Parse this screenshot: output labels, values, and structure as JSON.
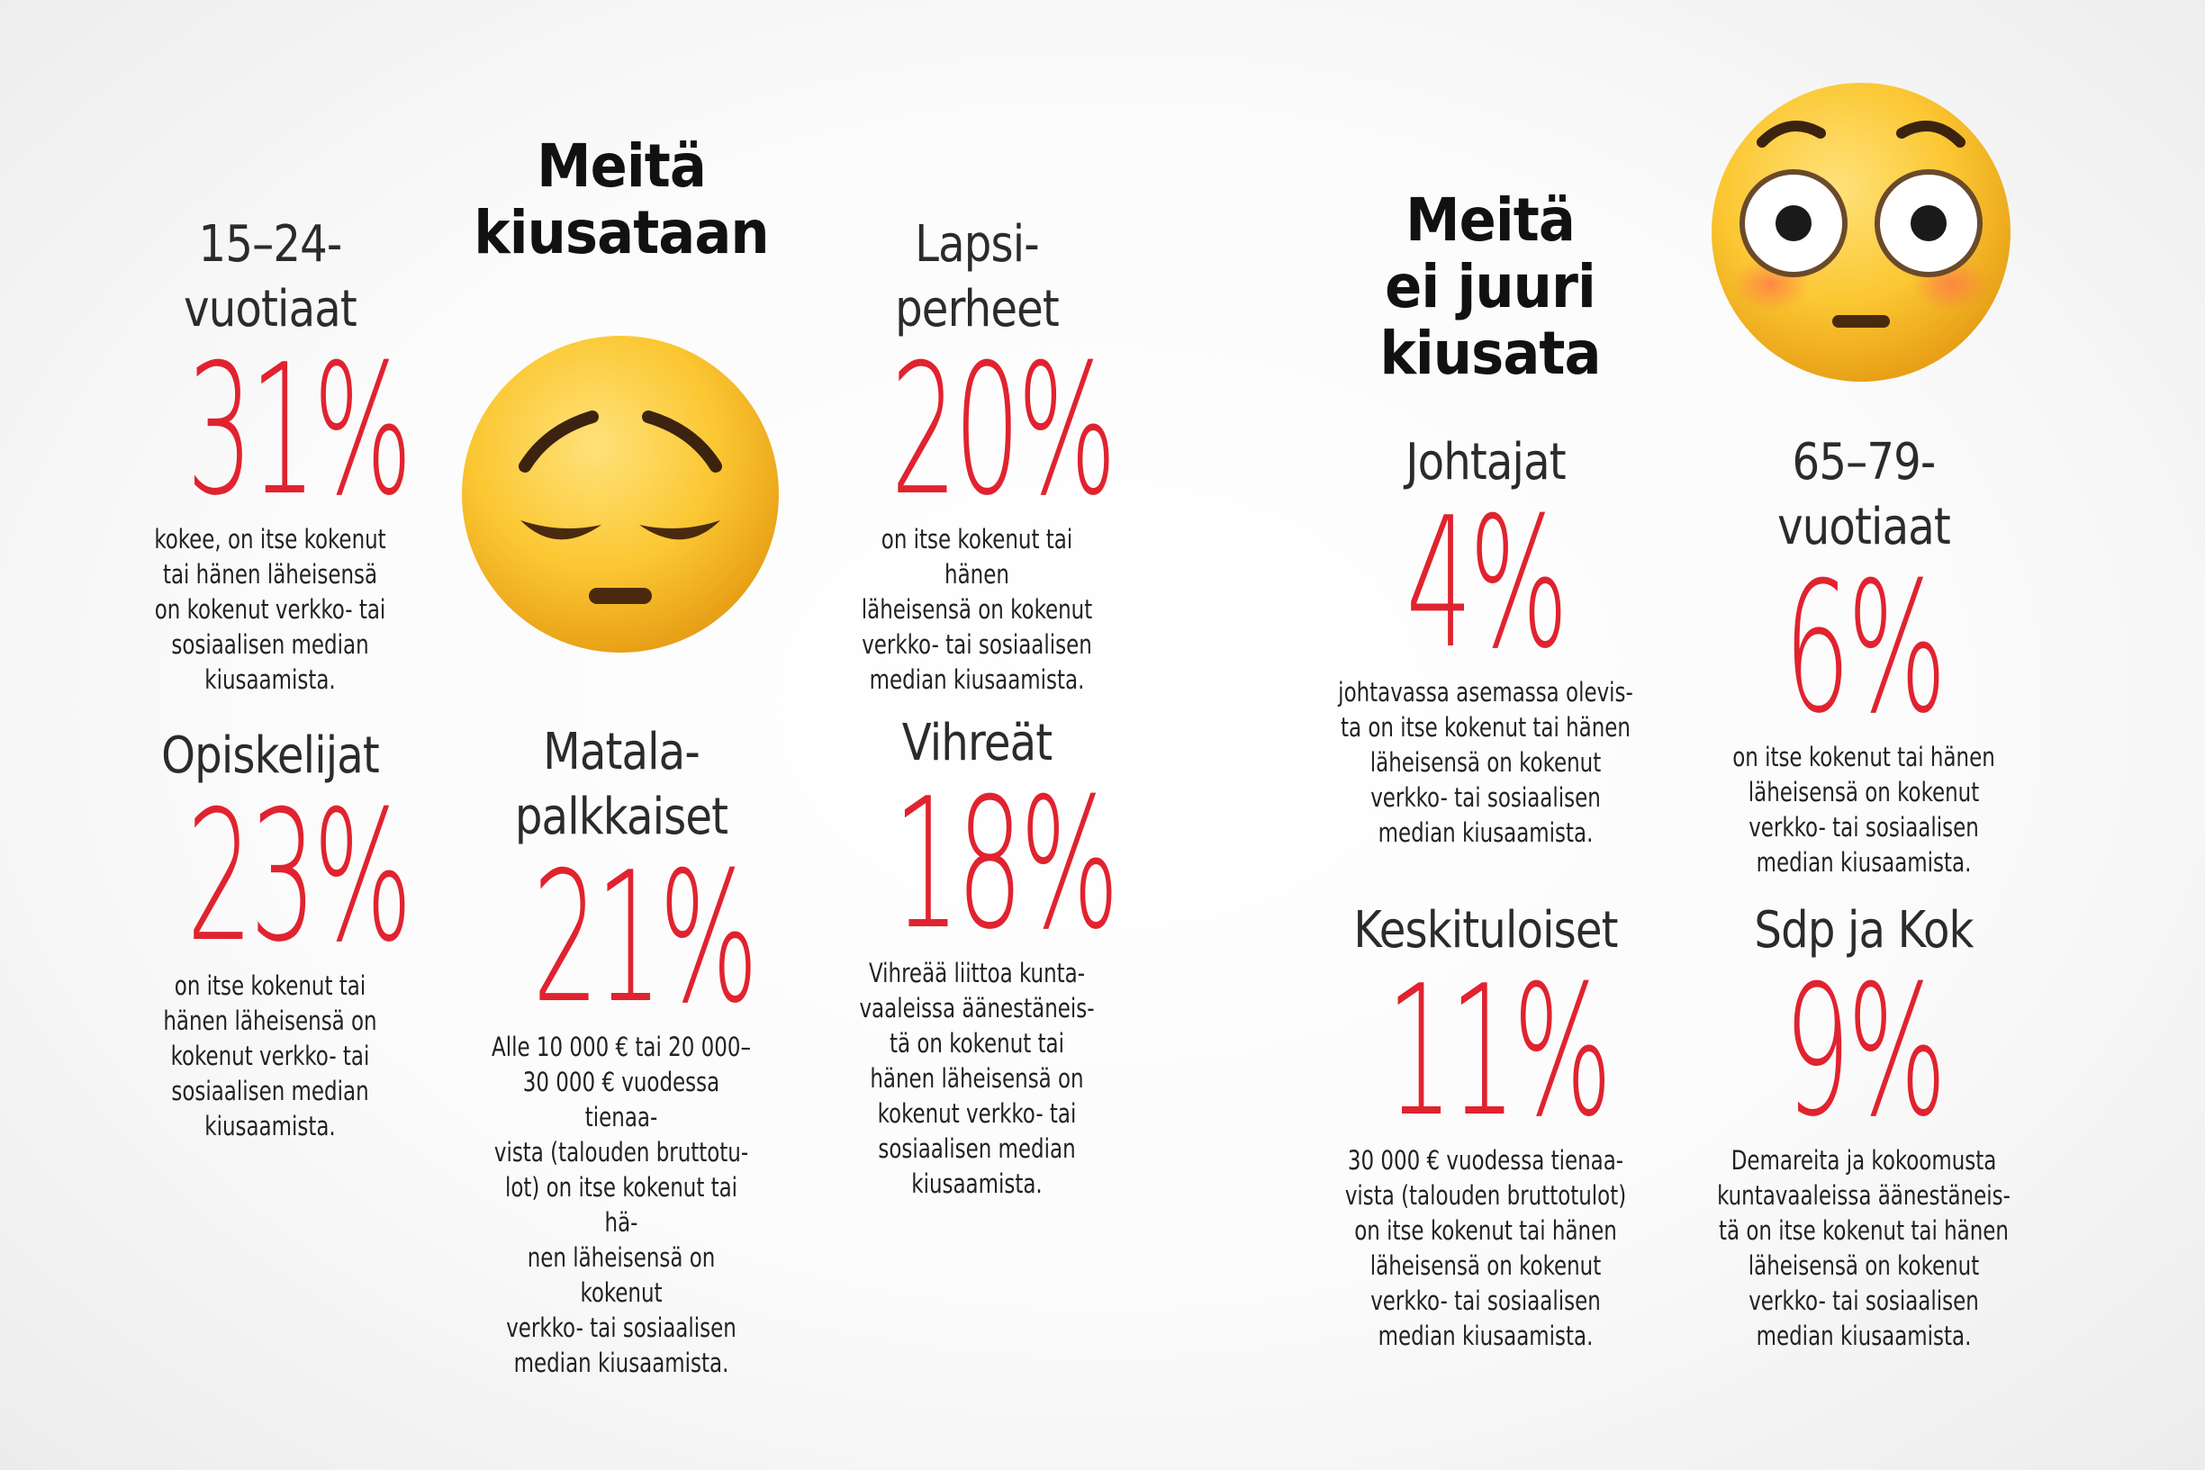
{
  "left": {
    "headline": "Meitä\nkiusataan",
    "emoji": "pensive-face-icon",
    "stats": [
      {
        "category": "15–24-\nvuotiaat",
        "percent": "31%",
        "description": "kokee, on itse kokenut\ntai hänen läheisensä\non kokenut verkko- tai\nsosiaalisen median\nkiusaamista."
      },
      {
        "category": "Lapsi-\nperheet",
        "percent": "20%",
        "description": "on itse kokenut tai hänen\nläheisensä on kokenut\nverkko- tai sosiaalisen\nmedian kiusaamista."
      },
      {
        "category": "Opiskelijat",
        "percent": "23%",
        "description": "on itse kokenut tai\nhänen läheisensä on\nkokenut verkko- tai\nsosiaalisen median\nkiusaamista."
      },
      {
        "category": "Matala-\npalkkaiset",
        "percent": "21%",
        "description": "Alle 10 000 € tai 20 000–\n30 000 € vuodessa tienaa-\nvista (talouden bruttotu-\nlot) on itse kokenut tai hä-\nnen läheisensä on kokenut\nverkko- tai sosiaalisen\nmedian kiusaamista."
      },
      {
        "category": "Vihreät",
        "percent": "18%",
        "description": "Vihreää liittoa kunta-\nvaaleissa äänestäneis-\ntä on kokenut tai\nhänen läheisensä on\nkokenut verkko- tai\nsosiaalisen median\nkiusaamista."
      }
    ]
  },
  "right": {
    "headline": "Meitä\nei juuri\nkiusata",
    "emoji": "flushed-face-icon",
    "stats": [
      {
        "category": "Johtajat",
        "percent": "4%",
        "description": "johtavassa asemassa olevis-\nta on itse kokenut tai hänen\nläheisensä on kokenut\nverkko- tai sosiaalisen\nmedian kiusaamista."
      },
      {
        "category": "65–79-\nvuotiaat",
        "percent": "6%",
        "description": "on itse kokenut tai hänen\nläheisensä on kokenut\nverkko- tai sosiaalisen\nmedian kiusaamista."
      },
      {
        "category": "Keskituloiset",
        "percent": "11%",
        "description": "30 000 € vuodessa tienaa-\nvista (talouden bruttotulot)\non itse kokenut tai hänen\nläheisensä on kokenut\nverkko- tai sosiaalisen\nmedian kiusaamista."
      },
      {
        "category": "Sdp ja Kok",
        "percent": "9%",
        "description": "Demareita ja kokoomusta\nkuntavaaleissa äänestäneis-\ntä on itse kokenut tai hänen\nläheisensä on kokenut\nverkko- tai sosiaalisen\nmedian kiusaamista."
      }
    ]
  },
  "colors": {
    "accent": "#e0232f",
    "emoji_yellow": "#f9c12e"
  }
}
